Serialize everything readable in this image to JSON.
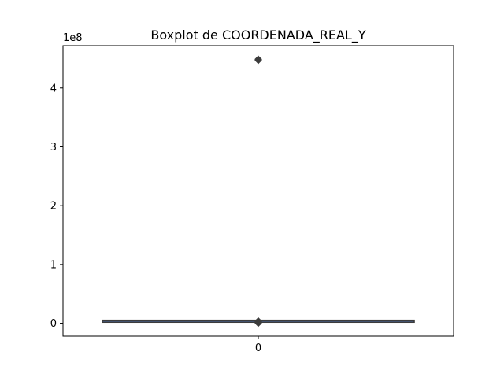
{
  "chart_data": {
    "type": "box",
    "title": "Boxplot de COORDENADA_REAL_Y",
    "xlabel": "",
    "ylabel": "",
    "y_offset_label": "1e8",
    "y_scale": 100000000,
    "ylim": [
      -22000000,
      472000000
    ],
    "yticks": [
      0,
      100000000,
      200000000,
      300000000,
      400000000
    ],
    "ytick_labels": [
      "0",
      "1",
      "2",
      "3",
      "4"
    ],
    "categories": [
      "0"
    ],
    "xtick_labels": [
      "0"
    ],
    "box": {
      "q1": 4450000,
      "median": 4460000,
      "q3": 4470000,
      "whisker_low": 4420000,
      "whisker_high": 4500000
    },
    "outliers_high": [
      447000000,
      448000000,
      449000000
    ],
    "outliers_low": [
      0,
      1000000,
      2000000,
      3000000,
      4000000
    ],
    "box_color": "#3c3c3c",
    "grid": false
  }
}
